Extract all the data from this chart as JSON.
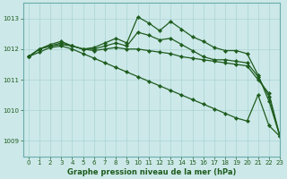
{
  "bg_color": "#cce8e8",
  "line_color": "#1e5c1e",
  "grid_color": "#aad4d4",
  "title": "Graphe pression niveau de la mer (hPa)",
  "xlim": [
    -0.5,
    23
  ],
  "ylim": [
    1008.5,
    1013.5
  ],
  "yticks": [
    1009,
    1010,
    1011,
    1012,
    1013
  ],
  "xticks": [
    0,
    1,
    2,
    3,
    4,
    5,
    6,
    7,
    8,
    9,
    10,
    11,
    12,
    13,
    14,
    15,
    16,
    17,
    18,
    19,
    20,
    21,
    22,
    23
  ],
  "series": [
    {
      "x": [
        0,
        1,
        2,
        3,
        4,
        5,
        6,
        7,
        8,
        9,
        10,
        11,
        12,
        13,
        14,
        15,
        16,
        17,
        18,
        19,
        20,
        21,
        22,
        23
      ],
      "y": [
        1011.75,
        1012.0,
        1012.15,
        1012.25,
        1012.1,
        1012.0,
        1012.05,
        1012.2,
        1012.35,
        1012.2,
        1013.05,
        1012.85,
        1012.6,
        1012.9,
        1012.65,
        1012.4,
        1012.25,
        1012.05,
        1011.95,
        1011.95,
        1011.85,
        1011.15,
        1010.3,
        1009.15
      ],
      "marker": "D",
      "markersize": 2.2,
      "linewidth": 0.9
    },
    {
      "x": [
        0,
        1,
        2,
        3,
        4,
        5,
        6,
        7,
        8,
        9,
        10,
        11,
        12,
        13,
        14,
        15,
        16,
        17,
        18,
        19,
        20,
        21,
        22,
        23
      ],
      "y": [
        1011.75,
        1012.0,
        1012.1,
        1012.2,
        1012.1,
        1012.0,
        1012.0,
        1012.1,
        1012.2,
        1012.1,
        1012.55,
        1012.45,
        1012.3,
        1012.35,
        1012.15,
        1011.95,
        1011.75,
        1011.65,
        1011.65,
        1011.6,
        1011.55,
        1011.1,
        1010.45,
        1009.15
      ],
      "marker": "D",
      "markersize": 2.2,
      "linewidth": 0.9
    },
    {
      "x": [
        0,
        1,
        2,
        3,
        4,
        5,
        6,
        7,
        8,
        9,
        10,
        11,
        12,
        13,
        14,
        15,
        16,
        17,
        18,
        19,
        20,
        21,
        22,
        23
      ],
      "y": [
        1011.75,
        1012.0,
        1012.1,
        1012.15,
        1012.1,
        1012.0,
        1011.95,
        1012.0,
        1012.05,
        1012.0,
        1012.0,
        1011.95,
        1011.9,
        1011.85,
        1011.75,
        1011.7,
        1011.65,
        1011.6,
        1011.55,
        1011.5,
        1011.45,
        1011.0,
        1010.55,
        1009.15
      ],
      "marker": "D",
      "markersize": 2.2,
      "linewidth": 0.9
    },
    {
      "x": [
        0,
        1,
        2,
        3,
        4,
        5,
        6,
        7,
        8,
        9,
        10,
        11,
        12,
        13,
        14,
        15,
        16,
        17,
        18,
        19,
        20,
        21,
        22,
        23
      ],
      "y": [
        1011.75,
        1011.9,
        1012.05,
        1012.1,
        1012.0,
        1011.85,
        1011.7,
        1011.55,
        1011.4,
        1011.25,
        1011.1,
        1010.95,
        1010.8,
        1010.65,
        1010.5,
        1010.35,
        1010.2,
        1010.05,
        1009.9,
        1009.75,
        1009.65,
        1010.5,
        1009.5,
        1009.15
      ],
      "marker": "D",
      "markersize": 2.2,
      "linewidth": 0.9
    }
  ]
}
